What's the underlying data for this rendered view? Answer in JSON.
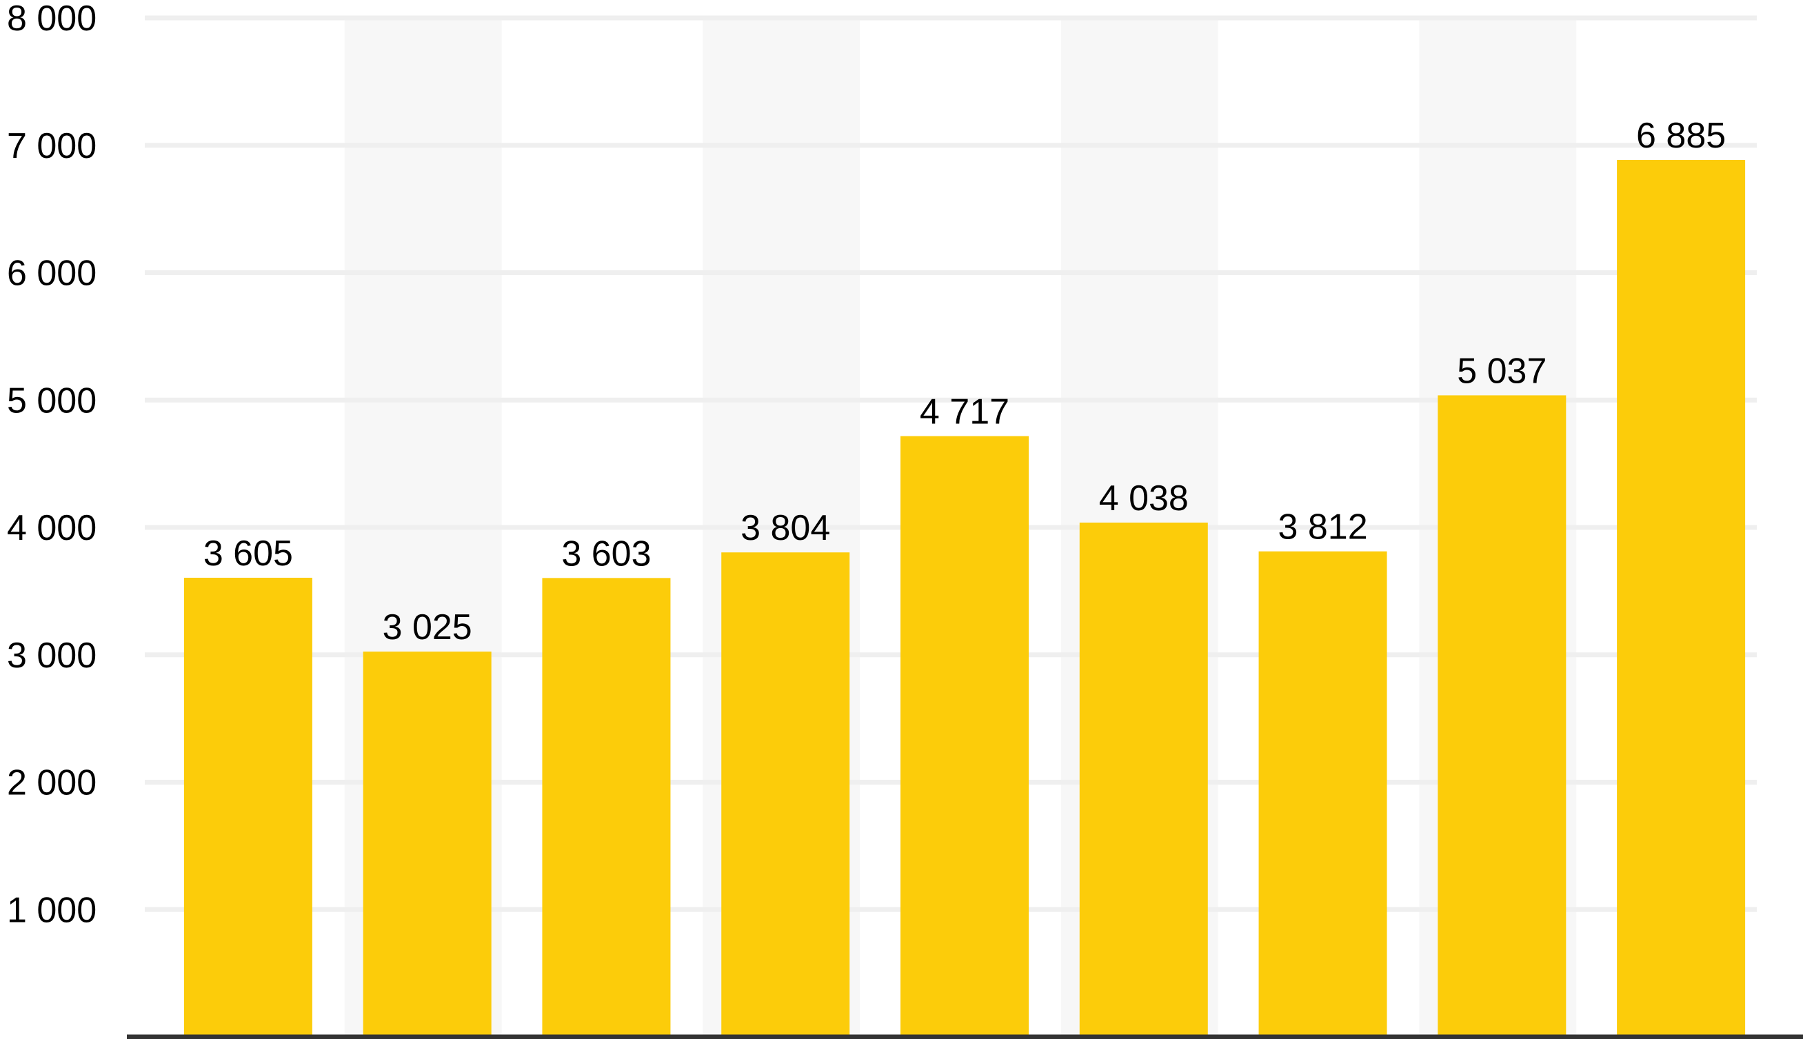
{
  "chart_data": {
    "type": "bar",
    "categories": [
      "",
      "",
      "",
      "",
      "",
      "",
      "",
      "",
      ""
    ],
    "values": [
      3605,
      3025,
      3603,
      3804,
      4717,
      4038,
      3812,
      5037,
      6885
    ],
    "value_labels": [
      "3 605",
      "3 025",
      "3 603",
      "3 804",
      "4 717",
      "4 038",
      "3 812",
      "5 037",
      "6 885"
    ],
    "title": "",
    "xlabel": "",
    "ylabel": "",
    "ylim": [
      0,
      8000
    ],
    "y_ticks": [
      1000,
      2000,
      3000,
      4000,
      5000,
      6000,
      7000,
      8000
    ],
    "y_tick_labels": [
      "1 000",
      "2 000",
      "3 000",
      "4 000",
      "5 000",
      "6 000",
      "7 000",
      "8 000"
    ],
    "grid": true,
    "alternating_column_bands": true,
    "legend": "none"
  },
  "colors": {
    "bar": "#FCCC0A",
    "band": "#F7F7F7",
    "grid": "#EFEFEF",
    "axis": "#333333",
    "text": "#000000"
  }
}
